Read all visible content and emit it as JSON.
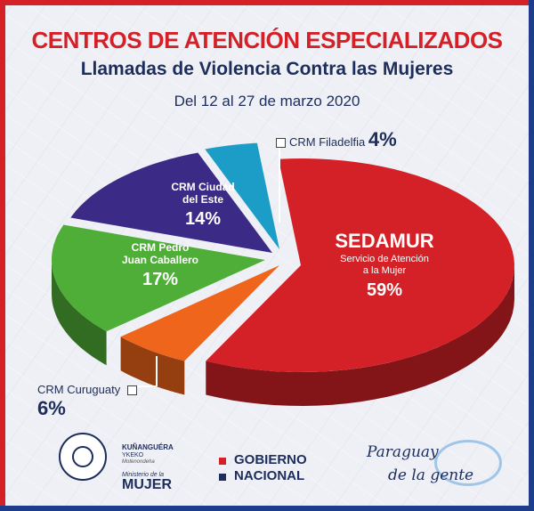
{
  "header": {
    "title": "CENTROS DE ATENCIÓN ESPECIALIZADOS",
    "subtitle": "Llamadas de Violencia Contra las Mujeres",
    "date_range": "Del 12 al 27 de marzo 2020"
  },
  "chart_data": {
    "type": "pie",
    "style": "3d-exploded",
    "slices": [
      {
        "label": "SEDAMUR",
        "sublabel": "Servicio de Atención a la Mujer",
        "value": 59,
        "color": "#d42127"
      },
      {
        "label": "CRM Curuguaty",
        "value": 6,
        "color": "#f0651c"
      },
      {
        "label": "CRM Pedro Juan Caballero",
        "value": 17,
        "color": "#4fae37"
      },
      {
        "label": "CRM Ciudad del Este",
        "value": 14,
        "color": "#3b2a86"
      },
      {
        "label": "CRM Filadelfia",
        "value": 4,
        "color": "#1c9dc8"
      }
    ],
    "value_labels": [
      "59%",
      "6%",
      "17%",
      "14%",
      "4%"
    ],
    "sedamur_lines": [
      "Servicio de Atención",
      "a la Mujer"
    ],
    "pjc_lines": [
      "CRM Pedro",
      "Juan Caballero"
    ],
    "cde_lines": [
      "CRM Ciudad",
      "del Este"
    ]
  },
  "footer": {
    "ministry_line1": "KUÑANGUÉRA",
    "ministry_line2": "YKEKO",
    "ministry_line3": "Motenondeha",
    "ministry_line4": "Ministerio de la",
    "ministry_name": "MUJER",
    "gov_line1": "GOBIERNO",
    "gov_line2": "NACIONAL",
    "brand_line1": "Paraguay",
    "brand_line2": "de la gente",
    "flag_colors": [
      "#d42127",
      "#1d2d5c"
    ]
  }
}
